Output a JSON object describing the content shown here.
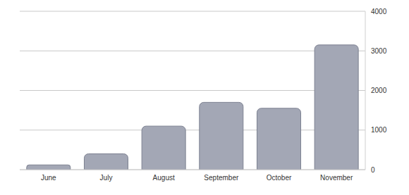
{
  "chart_data": {
    "type": "bar",
    "categories": [
      "June",
      "July",
      "August",
      "September",
      "October",
      "November"
    ],
    "values": [
      120,
      400,
      1100,
      1700,
      1550,
      3150
    ],
    "color": "#a3a7b5",
    "ylim": [
      0,
      4000
    ],
    "yticks": [
      0,
      1000,
      2000,
      3000,
      4000
    ],
    "grid": true
  }
}
